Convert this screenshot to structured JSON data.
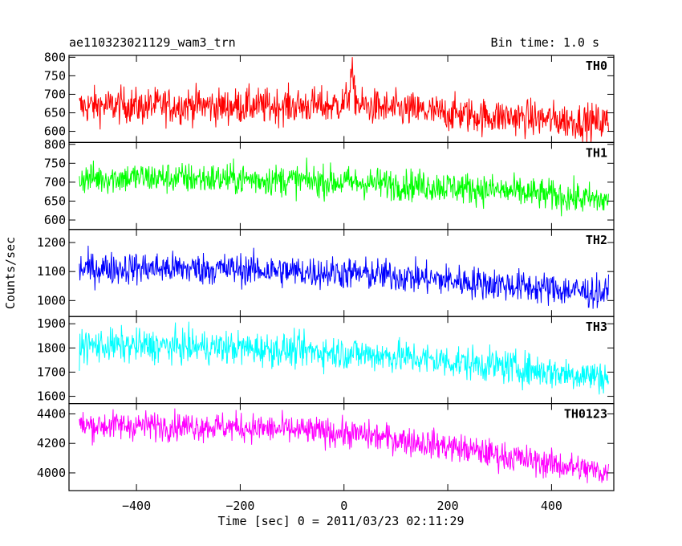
{
  "header": {
    "title": "ae110323021129_wam3_trn",
    "bin_time": "Bin time: 1.0 s"
  },
  "chart_data": {
    "type": "line",
    "title": "ae110323021129_wam3_trn",
    "xlabel": "Time [sec] 0 = 2011/03/23 02:11:29",
    "ylabel": "Counts/sec",
    "xlim": [
      -530,
      520
    ],
    "x_ticks": [
      -400,
      -200,
      0,
      200,
      400
    ],
    "x_tick_labels": [
      "−400",
      "−200",
      "0",
      "200",
      "400"
    ],
    "series": [
      {
        "name": "TH0",
        "color": "#ff0000",
        "ylim": [
          570,
          805
        ],
        "y_ticks": [
          600,
          650,
          700,
          750,
          800
        ],
        "x": [
          -510,
          -480,
          -450,
          -420,
          -390,
          -360,
          -330,
          -300,
          -270,
          -240,
          -210,
          -180,
          -150,
          -120,
          -90,
          -60,
          -30,
          0,
          10,
          15,
          20,
          30,
          60,
          90,
          120,
          150,
          180,
          210,
          240,
          270,
          300,
          330,
          360,
          390,
          420,
          450,
          480,
          510
        ],
        "values": [
          665,
          670,
          668,
          672,
          665,
          670,
          668,
          672,
          670,
          666,
          668,
          670,
          667,
          670,
          668,
          670,
          668,
          675,
          700,
          760,
          700,
          668,
          665,
          660,
          658,
          655,
          650,
          648,
          645,
          640,
          640,
          638,
          635,
          632,
          630,
          628,
          625,
          625
        ],
        "noise": 35
      },
      {
        "name": "TH1",
        "color": "#00ff00",
        "ylim": [
          575,
          805
        ],
        "y_ticks": [
          600,
          650,
          700,
          750,
          800
        ],
        "x": [
          -510,
          -400,
          -300,
          -200,
          -100,
          0,
          100,
          200,
          300,
          400,
          510
        ],
        "values": [
          710,
          712,
          710,
          708,
          705,
          700,
          695,
          688,
          678,
          665,
          650
        ],
        "noise": 30
      },
      {
        "name": "TH2",
        "color": "#0000ff",
        "ylim": [
          945,
          1245
        ],
        "y_ticks": [
          1000,
          1100,
          1200
        ],
        "x": [
          -510,
          -400,
          -300,
          -200,
          -100,
          0,
          100,
          200,
          300,
          400,
          510
        ],
        "values": [
          1110,
          1112,
          1110,
          1108,
          1100,
          1095,
          1085,
          1070,
          1055,
          1040,
          1025
        ],
        "noise": 40
      },
      {
        "name": "TH3",
        "color": "#00ffff",
        "ylim": [
          1570,
          1930
        ],
        "y_ticks": [
          1600,
          1700,
          1800,
          1900
        ],
        "x": [
          -510,
          -400,
          -300,
          -200,
          -100,
          0,
          100,
          200,
          300,
          400,
          510
        ],
        "values": [
          1810,
          1808,
          1805,
          1800,
          1790,
          1780,
          1765,
          1745,
          1725,
          1700,
          1680
        ],
        "noise": 50
      },
      {
        "name": "TH0123",
        "color": "#ff00ff",
        "ylim": [
          3880,
          4470
        ],
        "y_ticks": [
          4000,
          4200,
          4400
        ],
        "x": [
          -510,
          -400,
          -300,
          -200,
          -100,
          0,
          100,
          200,
          300,
          400,
          510
        ],
        "values": [
          4320,
          4322,
          4318,
          4310,
          4290,
          4270,
          4230,
          4180,
          4120,
          4060,
          4000
        ],
        "noise": 70
      }
    ]
  }
}
